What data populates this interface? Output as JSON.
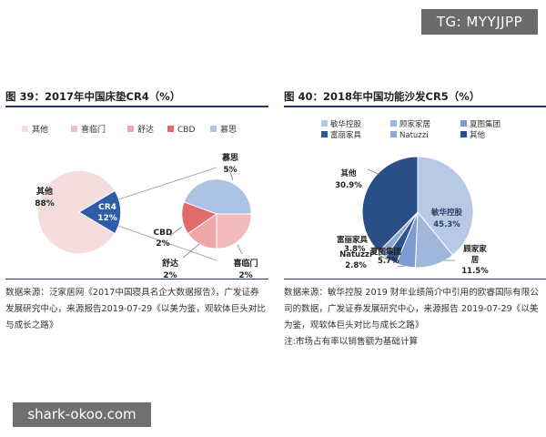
{
  "overlay": {
    "top_right_tag": "TG: MYYJJPP",
    "bottom_left_watermark": "shark-okoo.com"
  },
  "left": {
    "title": "图 39：2017年中国床垫CR4（%）",
    "source": "数据来源：泛家居网《2017中国寝具名企大数据报告》，广发证券发展研究中心，来源报告2019-07-29《以美为鉴，观软体巨头对比与成长之路》",
    "legend": [
      "其他",
      "喜临门",
      "舒达",
      "CBD",
      "慕思"
    ],
    "colors": {
      "其他": "#f5dddd",
      "CR4": "#2f5ca8",
      "喜临门": "#f2bcbc",
      "舒达": "#efa6a6",
      "CBD": "#e26a6a",
      "慕思": "#adc3e6"
    },
    "labels": {
      "other_name": "其他",
      "other_value": "88%",
      "cr4_name": "CR4",
      "cr4_value": "12%",
      "musi_name": "慕思",
      "musi_value": "5%",
      "cbd_name": "CBD",
      "cbd_value": "2%",
      "shuda_name": "舒达",
      "shuda_value": "2%",
      "xilinmen_name": "喜临门",
      "xilinmen_value": "2%"
    }
  },
  "right": {
    "title": "图 40：2018年中国功能沙发CR5（%）",
    "source": "数据来源：敏华控股 2019 财年业绩简介中引用的欧睿国际有限公司的数据，广发证券发展研究中心，来源报告 2019-07-29《以美为鉴，观软体巨头对比与成长之路》",
    "note": "注:市场占有率以销售额为基础计算",
    "legend": [
      "敏华控股",
      "顾家家居",
      "夏图集团",
      "富丽家具",
      "Natuzzi",
      "其他"
    ],
    "colors": {
      "敏华控股": "#b8c9e6",
      "顾家家居": "#a1b6dc",
      "夏图集团": "#7e9cd0",
      "富丽家具": "#2b568f",
      "Natuzzi": "#8ea8d6",
      "其他": "#2a4f86"
    },
    "labels": {
      "minhua_name": "敏华控股",
      "minhua_value": "45.3%",
      "kuka_name_1": "顾家家",
      "kuka_name_2": "居",
      "kuka_value": "11.5%",
      "xiatu_name": "夏图集团",
      "xiatu_value": "5.7%",
      "fuli_name": "富丽家具",
      "fuli_value": "3.8%",
      "natuzzi_name": "Natuzzi",
      "natuzzi_value": "2.8%",
      "other_name": "其他",
      "other_value": "30.9%"
    }
  },
  "chart_data": [
    {
      "type": "pie",
      "title": "图 39：2017年中国床垫CR4（%）",
      "main": {
        "categories": [
          "其他",
          "CR4"
        ],
        "values": [
          88,
          12
        ]
      },
      "breakdown_of": "CR4",
      "breakdown": {
        "categories": [
          "慕思",
          "喜临门",
          "舒达",
          "CBD"
        ],
        "values": [
          5,
          2,
          2,
          2
        ]
      }
    },
    {
      "type": "pie",
      "title": "图 40：2018年中国功能沙发CR5（%）",
      "categories": [
        "敏华控股",
        "顾家家居",
        "夏图集团",
        "富丽家具",
        "Natuzzi",
        "其他"
      ],
      "values": [
        45.3,
        11.5,
        5.7,
        3.8,
        2.8,
        30.9
      ]
    }
  ]
}
